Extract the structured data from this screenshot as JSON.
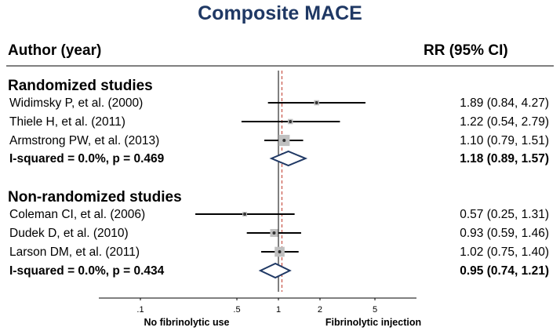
{
  "chart_data": {
    "type": "forest",
    "title": "Composite MACE",
    "headers": {
      "study": "Author (year)",
      "estimate": "RR (95% CI)"
    },
    "scale": "log",
    "xlim": [
      0.05,
      10
    ],
    "null_line": 1,
    "overall_estimate_line": 1.06,
    "ticks": [
      {
        "value": 0.1,
        "label": ".1"
      },
      {
        "value": 0.5,
        "label": ".5"
      },
      {
        "value": 1,
        "label": "1"
      },
      {
        "value": 2,
        "label": "2"
      },
      {
        "value": 5,
        "label": "5"
      }
    ],
    "xlabel_left": "No fibrinolytic use",
    "xlabel_right": "Fibrinolytic injection",
    "groups": [
      {
        "name": "Randomized studies",
        "studies": [
          {
            "label": "Widimsky P, et al. (2000)",
            "rr": 1.89,
            "lo": 0.84,
            "hi": 4.27,
            "weight": 0.15,
            "ci_text": "1.89 (0.84, 4.27)"
          },
          {
            "label": "Thiele H, et al. (2011)",
            "rr": 1.22,
            "lo": 0.54,
            "hi": 2.79,
            "weight": 0.15,
            "ci_text": "1.22 (0.54, 2.79)"
          },
          {
            "label": "Armstrong PW, et al. (2013)",
            "rr": 1.1,
            "lo": 0.79,
            "hi": 1.51,
            "weight": 0.7,
            "ci_text": "1.10 (0.79, 1.51)"
          }
        ],
        "summary": {
          "label": "I-squared = 0.0%, p = 0.469",
          "rr": 1.18,
          "lo": 0.89,
          "hi": 1.57,
          "ci_text": "1.18 (0.89, 1.57)"
        }
      },
      {
        "name": "Non-randomized studies",
        "studies": [
          {
            "label": "Coleman CI, et al. (2006)",
            "rr": 0.57,
            "lo": 0.25,
            "hi": 1.31,
            "weight": 0.12,
            "ci_text": "0.57 (0.25, 1.31)"
          },
          {
            "label": "Dudek D, et al. (2010)",
            "rr": 0.93,
            "lo": 0.59,
            "hi": 1.46,
            "weight": 0.35,
            "ci_text": "0.93 (0.59, 1.46)"
          },
          {
            "label": "Larson DM, et al. (2011)",
            "rr": 1.02,
            "lo": 0.75,
            "hi": 1.4,
            "weight": 0.55,
            "ci_text": "1.02 (0.75, 1.40)"
          }
        ],
        "summary": {
          "label": "I-squared = 0.0%, p = 0.434",
          "rr": 0.95,
          "lo": 0.74,
          "hi": 1.21,
          "ci_text": "0.95 (0.74, 1.21)"
        }
      }
    ],
    "colors": {
      "title": "#1f3864",
      "diamond": "#1f3864",
      "box": "#c0c0c0",
      "reference_line": "#c0392b"
    }
  }
}
